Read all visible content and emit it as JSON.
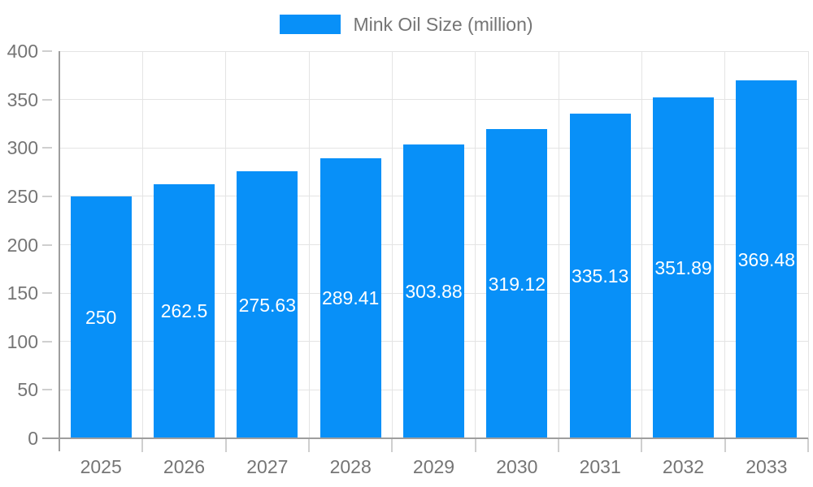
{
  "chart_data": {
    "type": "bar",
    "title": "Mink Oil Size (million)",
    "categories": [
      "2025",
      "2026",
      "2027",
      "2028",
      "2029",
      "2030",
      "2031",
      "2032",
      "2033"
    ],
    "series": [
      {
        "name": "Mink Oil Size (million)",
        "values": [
          250,
          262.5,
          275.63,
          289.41,
          303.88,
          319.12,
          335.13,
          351.89,
          369.48
        ]
      }
    ],
    "value_labels": [
      "250",
      "262.5",
      "275.63",
      "289.41",
      "303.88",
      "319.12",
      "335.13",
      "351.89",
      "369.48"
    ],
    "xlabel": "",
    "ylabel": "",
    "ylim": [
      0,
      400
    ],
    "y_ticks": [
      0,
      50,
      100,
      150,
      200,
      250,
      300,
      350,
      400
    ],
    "grid": true,
    "legend_position": "top-center",
    "colors": {
      "bar": "#0890f8",
      "grid": "#e4e4e4",
      "axis": "#9e9e9e",
      "tick": "#cfcfcf",
      "text": "#757575",
      "value_label": "#ffffff",
      "background": "#ffffff"
    }
  }
}
